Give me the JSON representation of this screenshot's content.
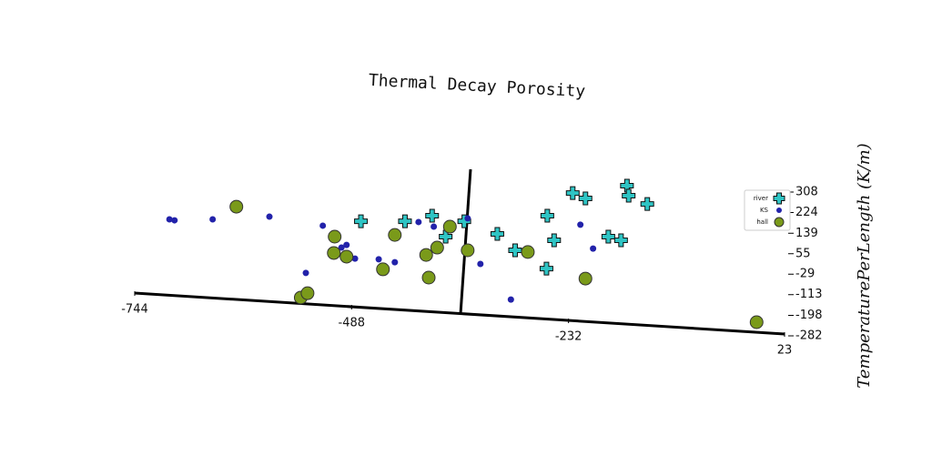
{
  "chart_data": {
    "type": "scatter",
    "title": "Thermal Decay Porosity",
    "y_label": "TemperaturePerLength (K/m)",
    "xlim": [
      -744,
      23
    ],
    "xticks": [
      -744,
      -488,
      -232,
      23
    ],
    "ylim": [
      -282,
      308
    ],
    "yticks": [
      -282,
      -198,
      -113,
      -29,
      55,
      139,
      224,
      308
    ],
    "legend": "upper right",
    "series": [
      {
        "name": "river",
        "color": "#2ec4c4",
        "marker": "plus",
        "x": [
          -477,
          -425,
          -393,
          -377,
          -355,
          -316,
          -295,
          -257,
          -249,
          -258,
          -227,
          -212,
          -163,
          -161,
          -139,
          -185,
          -170
        ],
        "values": [
          188,
          188,
          211,
          125,
          188,
          136,
          69,
          211,
          110,
          -6,
          304,
          282,
          334,
          293,
          259,
          125,
          110
        ]
      },
      {
        "name": "KS",
        "color": "#2222aa",
        "marker": "dot",
        "x": [
          -703,
          -697,
          -652,
          -585,
          -522,
          -500,
          -494,
          -484,
          -456,
          -437,
          -542,
          -409,
          -391,
          -351,
          -336,
          -300,
          -218,
          -203
        ],
        "values": [
          196,
          192,
          196,
          207,
          170,
          80,
          91,
          35,
          32,
          20,
          -24,
          185,
          166,
          200,
          13,
          -133,
          174,
          76
        ]
      },
      {
        "name": "hall",
        "color": "#7a9a1a",
        "marker": "circle",
        "x": [
          -624,
          -508,
          -437,
          -509,
          -494,
          -451,
          -400,
          -387,
          -372,
          -351,
          -397,
          -280,
          -212,
          -548,
          -540,
          -10
        ],
        "values": [
          248,
          125,
          132,
          58,
          43,
          -9,
          50,
          80,
          166,
          69,
          -43,
          62,
          -47,
          -125,
          -107,
          -226
        ]
      }
    ]
  }
}
